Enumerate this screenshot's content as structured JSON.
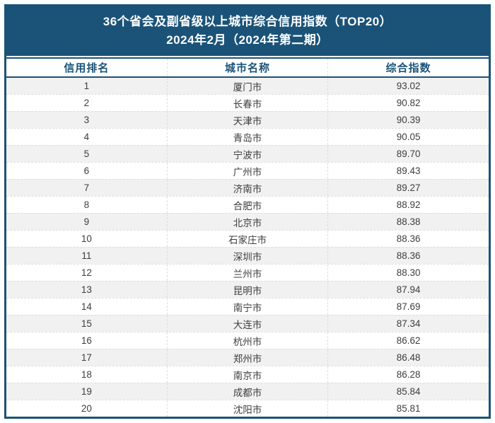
{
  "colors": {
    "navy": "#1B5378",
    "stripe": "#F1F1F1",
    "dashed_border": "#D9DFE5",
    "body_text": "#3D3D3D",
    "title_text": "#FFFFFF"
  },
  "title": {
    "line1": "36个省会及副省级以上城市综合信用指数（TOP20）",
    "line2": "2024年2月（2024年第二期）"
  },
  "table": {
    "columns": [
      "信用排名",
      "城市名称",
      "综合指数"
    ],
    "rows": [
      {
        "rank": "1",
        "city": "厦门市",
        "index": "93.02"
      },
      {
        "rank": "2",
        "city": "长春市",
        "index": "90.82"
      },
      {
        "rank": "3",
        "city": "天津市",
        "index": "90.39"
      },
      {
        "rank": "4",
        "city": "青岛市",
        "index": "90.05"
      },
      {
        "rank": "5",
        "city": "宁波市",
        "index": "89.70"
      },
      {
        "rank": "6",
        "city": "广州市",
        "index": "89.43"
      },
      {
        "rank": "7",
        "city": "济南市",
        "index": "89.27"
      },
      {
        "rank": "8",
        "city": "合肥市",
        "index": "88.92"
      },
      {
        "rank": "9",
        "city": "北京市",
        "index": "88.38"
      },
      {
        "rank": "10",
        "city": "石家庄市",
        "index": "88.36"
      },
      {
        "rank": "11",
        "city": "深圳市",
        "index": "88.36"
      },
      {
        "rank": "12",
        "city": "兰州市",
        "index": "88.30"
      },
      {
        "rank": "13",
        "city": "昆明市",
        "index": "87.94"
      },
      {
        "rank": "14",
        "city": "南宁市",
        "index": "87.69"
      },
      {
        "rank": "15",
        "city": "大连市",
        "index": "87.34"
      },
      {
        "rank": "16",
        "city": "杭州市",
        "index": "86.62"
      },
      {
        "rank": "17",
        "city": "郑州市",
        "index": "86.48"
      },
      {
        "rank": "18",
        "city": "南京市",
        "index": "86.28"
      },
      {
        "rank": "19",
        "city": "成都市",
        "index": "85.84"
      },
      {
        "rank": "20",
        "city": "沈阳市",
        "index": "85.81"
      }
    ]
  }
}
